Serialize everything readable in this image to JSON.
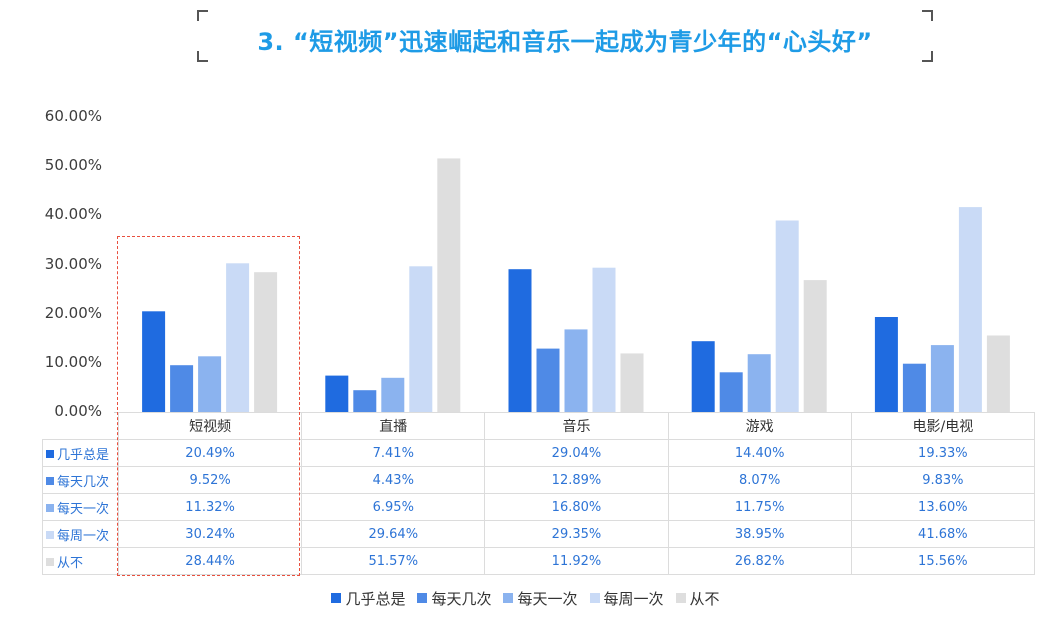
{
  "title": "3. “短视频”迅速崛起和音乐一起成为青少年的“心头好”",
  "chart_data": {
    "type": "bar",
    "categories": [
      "短视频",
      "直播",
      "音乐",
      "游戏",
      "电影/电视"
    ],
    "series": [
      {
        "name": "几乎总是",
        "color": "#1f6be0",
        "values": [
          20.49,
          7.41,
          29.04,
          14.4,
          19.33
        ],
        "labels": [
          "20.49%",
          "7.41%",
          "29.04%",
          "14.40%",
          "19.33%"
        ]
      },
      {
        "name": "每天几次",
        "color": "#4f8ae6",
        "values": [
          9.52,
          4.43,
          12.89,
          8.07,
          9.83
        ],
        "labels": [
          "9.52%",
          "4.43%",
          "12.89%",
          "8.07%",
          "9.83%"
        ]
      },
      {
        "name": "每天一次",
        "color": "#8bb3ef",
        "values": [
          11.32,
          6.95,
          16.8,
          11.75,
          13.6
        ],
        "labels": [
          "11.32%",
          "6.95%",
          "16.80%",
          "11.75%",
          "13.60%"
        ]
      },
      {
        "name": "每周一次",
        "color": "#c9daf6",
        "values": [
          30.24,
          29.64,
          29.35,
          38.95,
          41.68
        ],
        "labels": [
          "30.24%",
          "29.64%",
          "29.35%",
          "38.95%",
          "41.68%"
        ]
      },
      {
        "name": "从不",
        "color": "#dedede",
        "values": [
          28.44,
          51.57,
          11.92,
          26.82,
          15.56
        ],
        "labels": [
          "28.44%",
          "51.57%",
          "11.92%",
          "26.82%",
          "15.56%"
        ]
      }
    ],
    "yticks": [
      "0.00%",
      "10.00%",
      "20.00%",
      "30.00%",
      "40.00%",
      "50.00%",
      "60.00%"
    ],
    "ylim": [
      0,
      60
    ],
    "grid": false,
    "legend": "bottom",
    "highlight_category": "短视频"
  }
}
